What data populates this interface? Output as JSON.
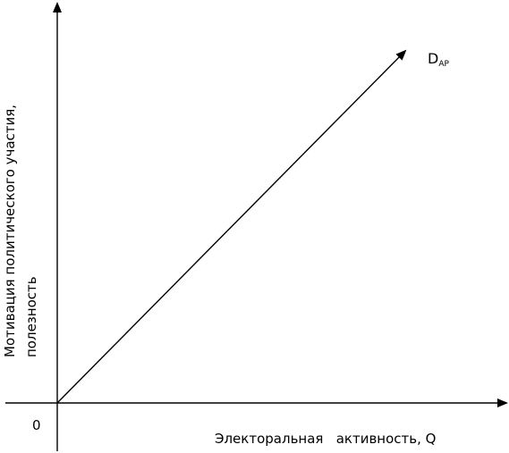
{
  "diagram": {
    "origin_label": "0",
    "x_axis_label": "Электоральная   активность, Q",
    "y_axis_label_line1": "Мотивация политического участия,",
    "y_axis_label_line2": "полезность",
    "curve_label": "D",
    "curve_label_subscript": "AP"
  },
  "colors": {
    "background": "#ffffff",
    "stroke": "#000000"
  }
}
